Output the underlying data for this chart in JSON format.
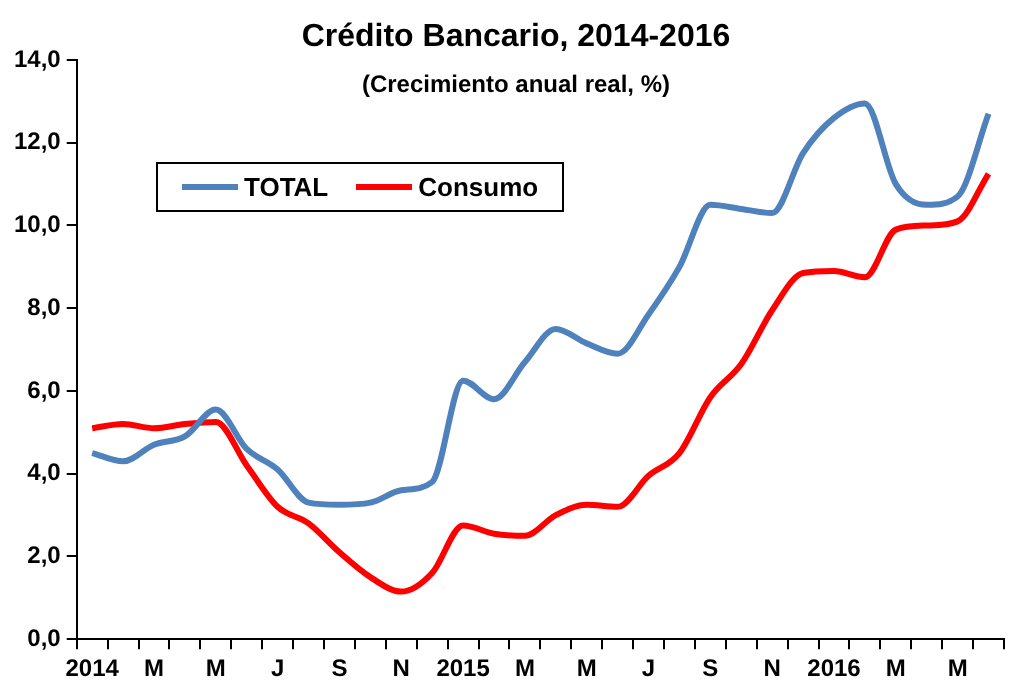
{
  "chart_data": {
    "type": "line",
    "title": "Crédito Bancario, 2014-2016",
    "subtitle": "(Crecimiento anual real, %)",
    "categories": [
      "2014",
      null,
      "M",
      null,
      "M",
      null,
      "J",
      null,
      "S",
      null,
      "N",
      null,
      "2015",
      null,
      "M",
      null,
      "M",
      null,
      "J",
      null,
      "S",
      null,
      "N",
      null,
      "2016",
      null,
      "M",
      null,
      "M",
      null
    ],
    "series": [
      {
        "name": "TOTAL",
        "color": "#4f81bd",
        "values": [
          4.5,
          4.3,
          4.7,
          4.9,
          5.55,
          4.6,
          4.1,
          3.3,
          3.25,
          3.3,
          3.6,
          3.8,
          6.25,
          5.8,
          6.7,
          7.5,
          7.15,
          6.9,
          7.85,
          9.0,
          10.5,
          10.4,
          10.3,
          11.75,
          12.6,
          12.95,
          11.0,
          10.5,
          10.7,
          12.7
        ]
      },
      {
        "name": "Consumo",
        "color": "#ff0000",
        "values": [
          5.1,
          5.2,
          5.1,
          5.2,
          5.25,
          4.2,
          3.2,
          2.8,
          2.1,
          1.5,
          1.15,
          1.6,
          2.75,
          2.55,
          2.5,
          3.0,
          3.25,
          3.2,
          3.95,
          4.5,
          5.85,
          6.65,
          7.95,
          8.85,
          8.9,
          8.75,
          9.9,
          10.0,
          10.1,
          11.25
        ]
      }
    ],
    "ylim": [
      0,
      14
    ],
    "yticks": [
      {
        "value": 0,
        "label": "0,0"
      },
      {
        "value": 2,
        "label": "2,0"
      },
      {
        "value": 4,
        "label": "4,0"
      },
      {
        "value": 6,
        "label": "6,0"
      },
      {
        "value": 8,
        "label": "8,0"
      },
      {
        "value": 10,
        "label": "10,0"
      },
      {
        "value": 12,
        "label": "12,0"
      },
      {
        "value": 14,
        "label": "14,0"
      }
    ],
    "grid": false,
    "legend": "top left",
    "marker": "none",
    "line_style": "solid"
  }
}
